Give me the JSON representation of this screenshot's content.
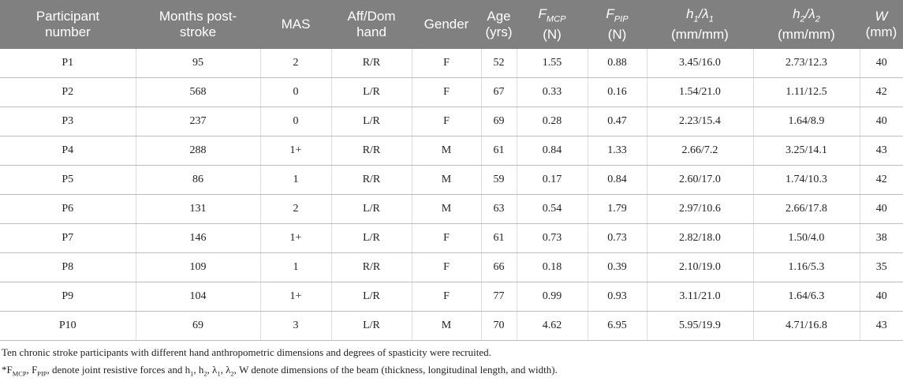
{
  "table": {
    "header": [
      {
        "lines": [
          [
            "Participant"
          ],
          [
            "number"
          ]
        ]
      },
      {
        "lines": [
          [
            "Months post-"
          ],
          [
            "stroke"
          ]
        ]
      },
      {
        "lines": [
          [
            "MAS"
          ]
        ]
      },
      {
        "lines": [
          [
            "Aff/Dom"
          ],
          [
            "hand"
          ]
        ]
      },
      {
        "lines": [
          [
            "Gender"
          ]
        ]
      },
      {
        "lines": [
          [
            "Age"
          ],
          [
            "(yrs)"
          ]
        ]
      },
      {
        "lines": [
          [
            "F",
            "MCP"
          ],
          [
            "(N)"
          ]
        ],
        "italic": true
      },
      {
        "lines": [
          [
            "F",
            "PIP"
          ],
          [
            "(N)"
          ]
        ],
        "italic": true
      },
      {
        "lines": [
          [
            "h",
            "1",
            "/λ",
            "1"
          ],
          [
            "(mm/mm)"
          ]
        ],
        "italic": true
      },
      {
        "lines": [
          [
            "h",
            "2",
            "/λ",
            "2"
          ],
          [
            "(mm/mm)"
          ]
        ],
        "italic": true
      },
      {
        "lines": [
          [
            "W"
          ],
          [
            "(mm)"
          ]
        ],
        "italic": true
      }
    ],
    "rows": [
      [
        "P1",
        "95",
        "2",
        "R/R",
        "F",
        "52",
        "1.55",
        "0.88",
        "3.45/16.0",
        "2.73/12.3",
        "40"
      ],
      [
        "P2",
        "568",
        "0",
        "L/R",
        "F",
        "67",
        "0.33",
        "0.16",
        "1.54/21.0",
        "1.11/12.5",
        "42"
      ],
      [
        "P3",
        "237",
        "0",
        "L/R",
        "F",
        "69",
        "0.28",
        "0.47",
        "2.23/15.4",
        "1.64/8.9",
        "40"
      ],
      [
        "P4",
        "288",
        "1+",
        "R/R",
        "M",
        "61",
        "0.84",
        "1.33",
        "2.66/7.2",
        "3.25/14.1",
        "43"
      ],
      [
        "P5",
        "86",
        "1",
        "R/R",
        "M",
        "59",
        "0.17",
        "0.84",
        "2.60/17.0",
        "1.74/10.3",
        "42"
      ],
      [
        "P6",
        "131",
        "2",
        "L/R",
        "M",
        "63",
        "0.54",
        "1.79",
        "2.97/10.6",
        "2.66/17.8",
        "40"
      ],
      [
        "P7",
        "146",
        "1+",
        "L/R",
        "F",
        "61",
        "0.73",
        "0.73",
        "2.82/18.0",
        "1.50/4.0",
        "38"
      ],
      [
        "P8",
        "109",
        "1",
        "R/R",
        "F",
        "66",
        "0.18",
        "0.39",
        "2.10/19.0",
        "1.16/5.3",
        "35"
      ],
      [
        "P9",
        "104",
        "1+",
        "L/R",
        "F",
        "77",
        "0.99",
        "0.93",
        "3.11/21.0",
        "1.64/6.3",
        "40"
      ],
      [
        "P10",
        "69",
        "3",
        "L/R",
        "M",
        "70",
        "4.62",
        "6.95",
        "5.95/19.9",
        "4.71/16.8",
        "43"
      ]
    ]
  },
  "notes": [
    [
      "Ten chronic stroke participants with different hand anthropometric dimensions and degrees of spasticity were recruited."
    ],
    [
      "*F",
      "MCP",
      ", F",
      "PIP",
      ", denote joint resistive forces and h",
      "1",
      ", h",
      "2",
      ", λ",
      "1",
      ", λ",
      "2",
      ", W denote dimensions of the beam (thickness, longitudinal length, and width)."
    ]
  ]
}
